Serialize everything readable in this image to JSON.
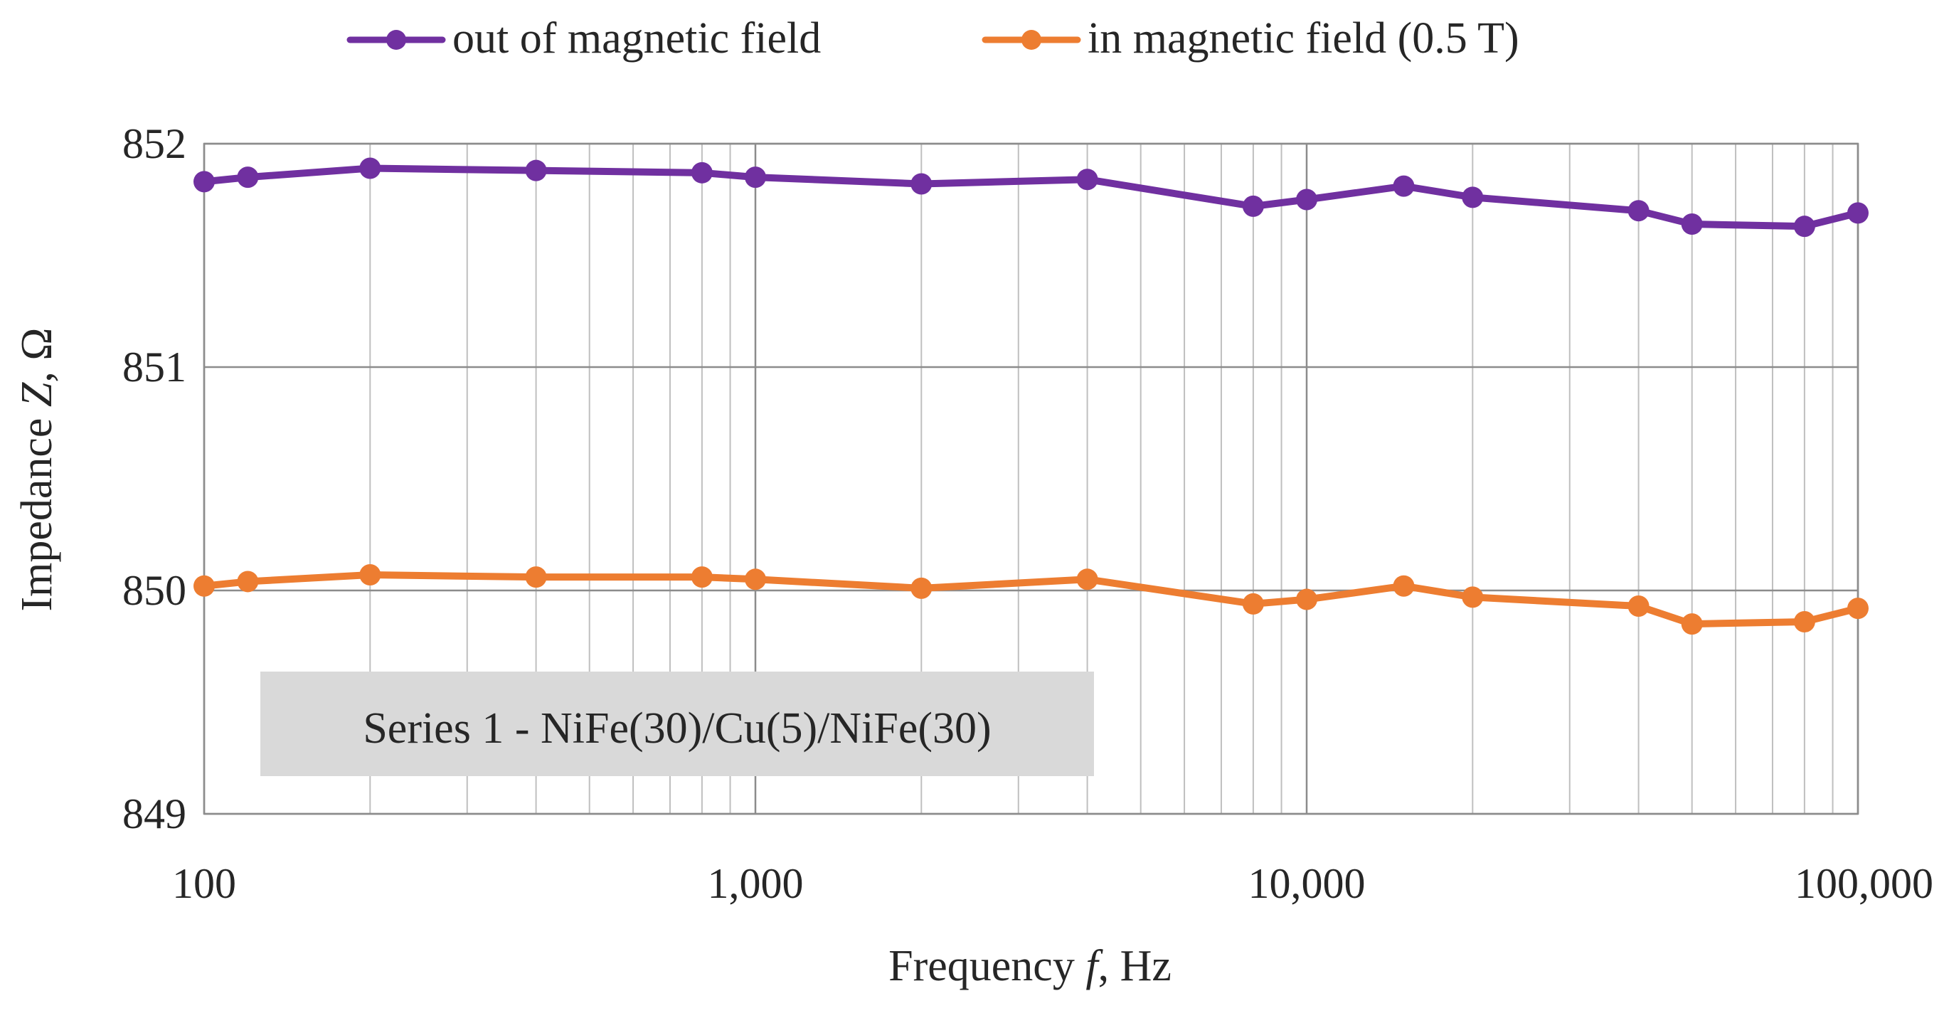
{
  "chart_data": {
    "type": "line",
    "title": "",
    "xlabel": "Frequency f, Hz",
    "xlabel_parts": {
      "prefix": "Frequency ",
      "symbol": "f",
      "suffix": ", Hz"
    },
    "ylabel": "Impedance Z, Ω",
    "ylabel_parts": {
      "prefix": "Impedance ",
      "symbol": "Z",
      "suffix": ", Ω"
    },
    "x_scale": "log",
    "xlim": [
      100,
      100000
    ],
    "ylim": [
      849,
      852
    ],
    "grid": true,
    "x_ticks": [
      {
        "value": 100,
        "label": "100"
      },
      {
        "value": 1000,
        "label": "1,000"
      },
      {
        "value": 10000,
        "label": "10,000"
      },
      {
        "value": 100000,
        "label": "100,000"
      }
    ],
    "y_ticks": [
      {
        "value": 849,
        "label": "849"
      },
      {
        "value": 850,
        "label": "850"
      },
      {
        "value": 851,
        "label": "851"
      },
      {
        "value": 852,
        "label": "852"
      }
    ],
    "annotation": "Series 1 - NiFe(30)/Cu(5)/NiFe(30)",
    "legend_position": "top-center",
    "x": [
      100,
      120,
      200,
      400,
      800,
      1000,
      2000,
      4000,
      8000,
      10000,
      15000,
      20000,
      40000,
      50000,
      80000,
      100000
    ],
    "series": [
      {
        "name": "out of magnetic field",
        "color": "#7030a0",
        "values": [
          851.83,
          851.85,
          851.89,
          851.88,
          851.87,
          851.85,
          851.82,
          851.84,
          851.72,
          851.75,
          851.81,
          851.76,
          851.7,
          851.64,
          851.63,
          851.69
        ]
      },
      {
        "name": "in magnetic field (0.5 T)",
        "color": "#ed7d31",
        "values": [
          850.02,
          850.04,
          850.07,
          850.06,
          850.06,
          850.05,
          850.01,
          850.05,
          849.94,
          849.96,
          850.02,
          849.97,
          849.93,
          849.85,
          849.86,
          849.92
        ]
      }
    ]
  }
}
